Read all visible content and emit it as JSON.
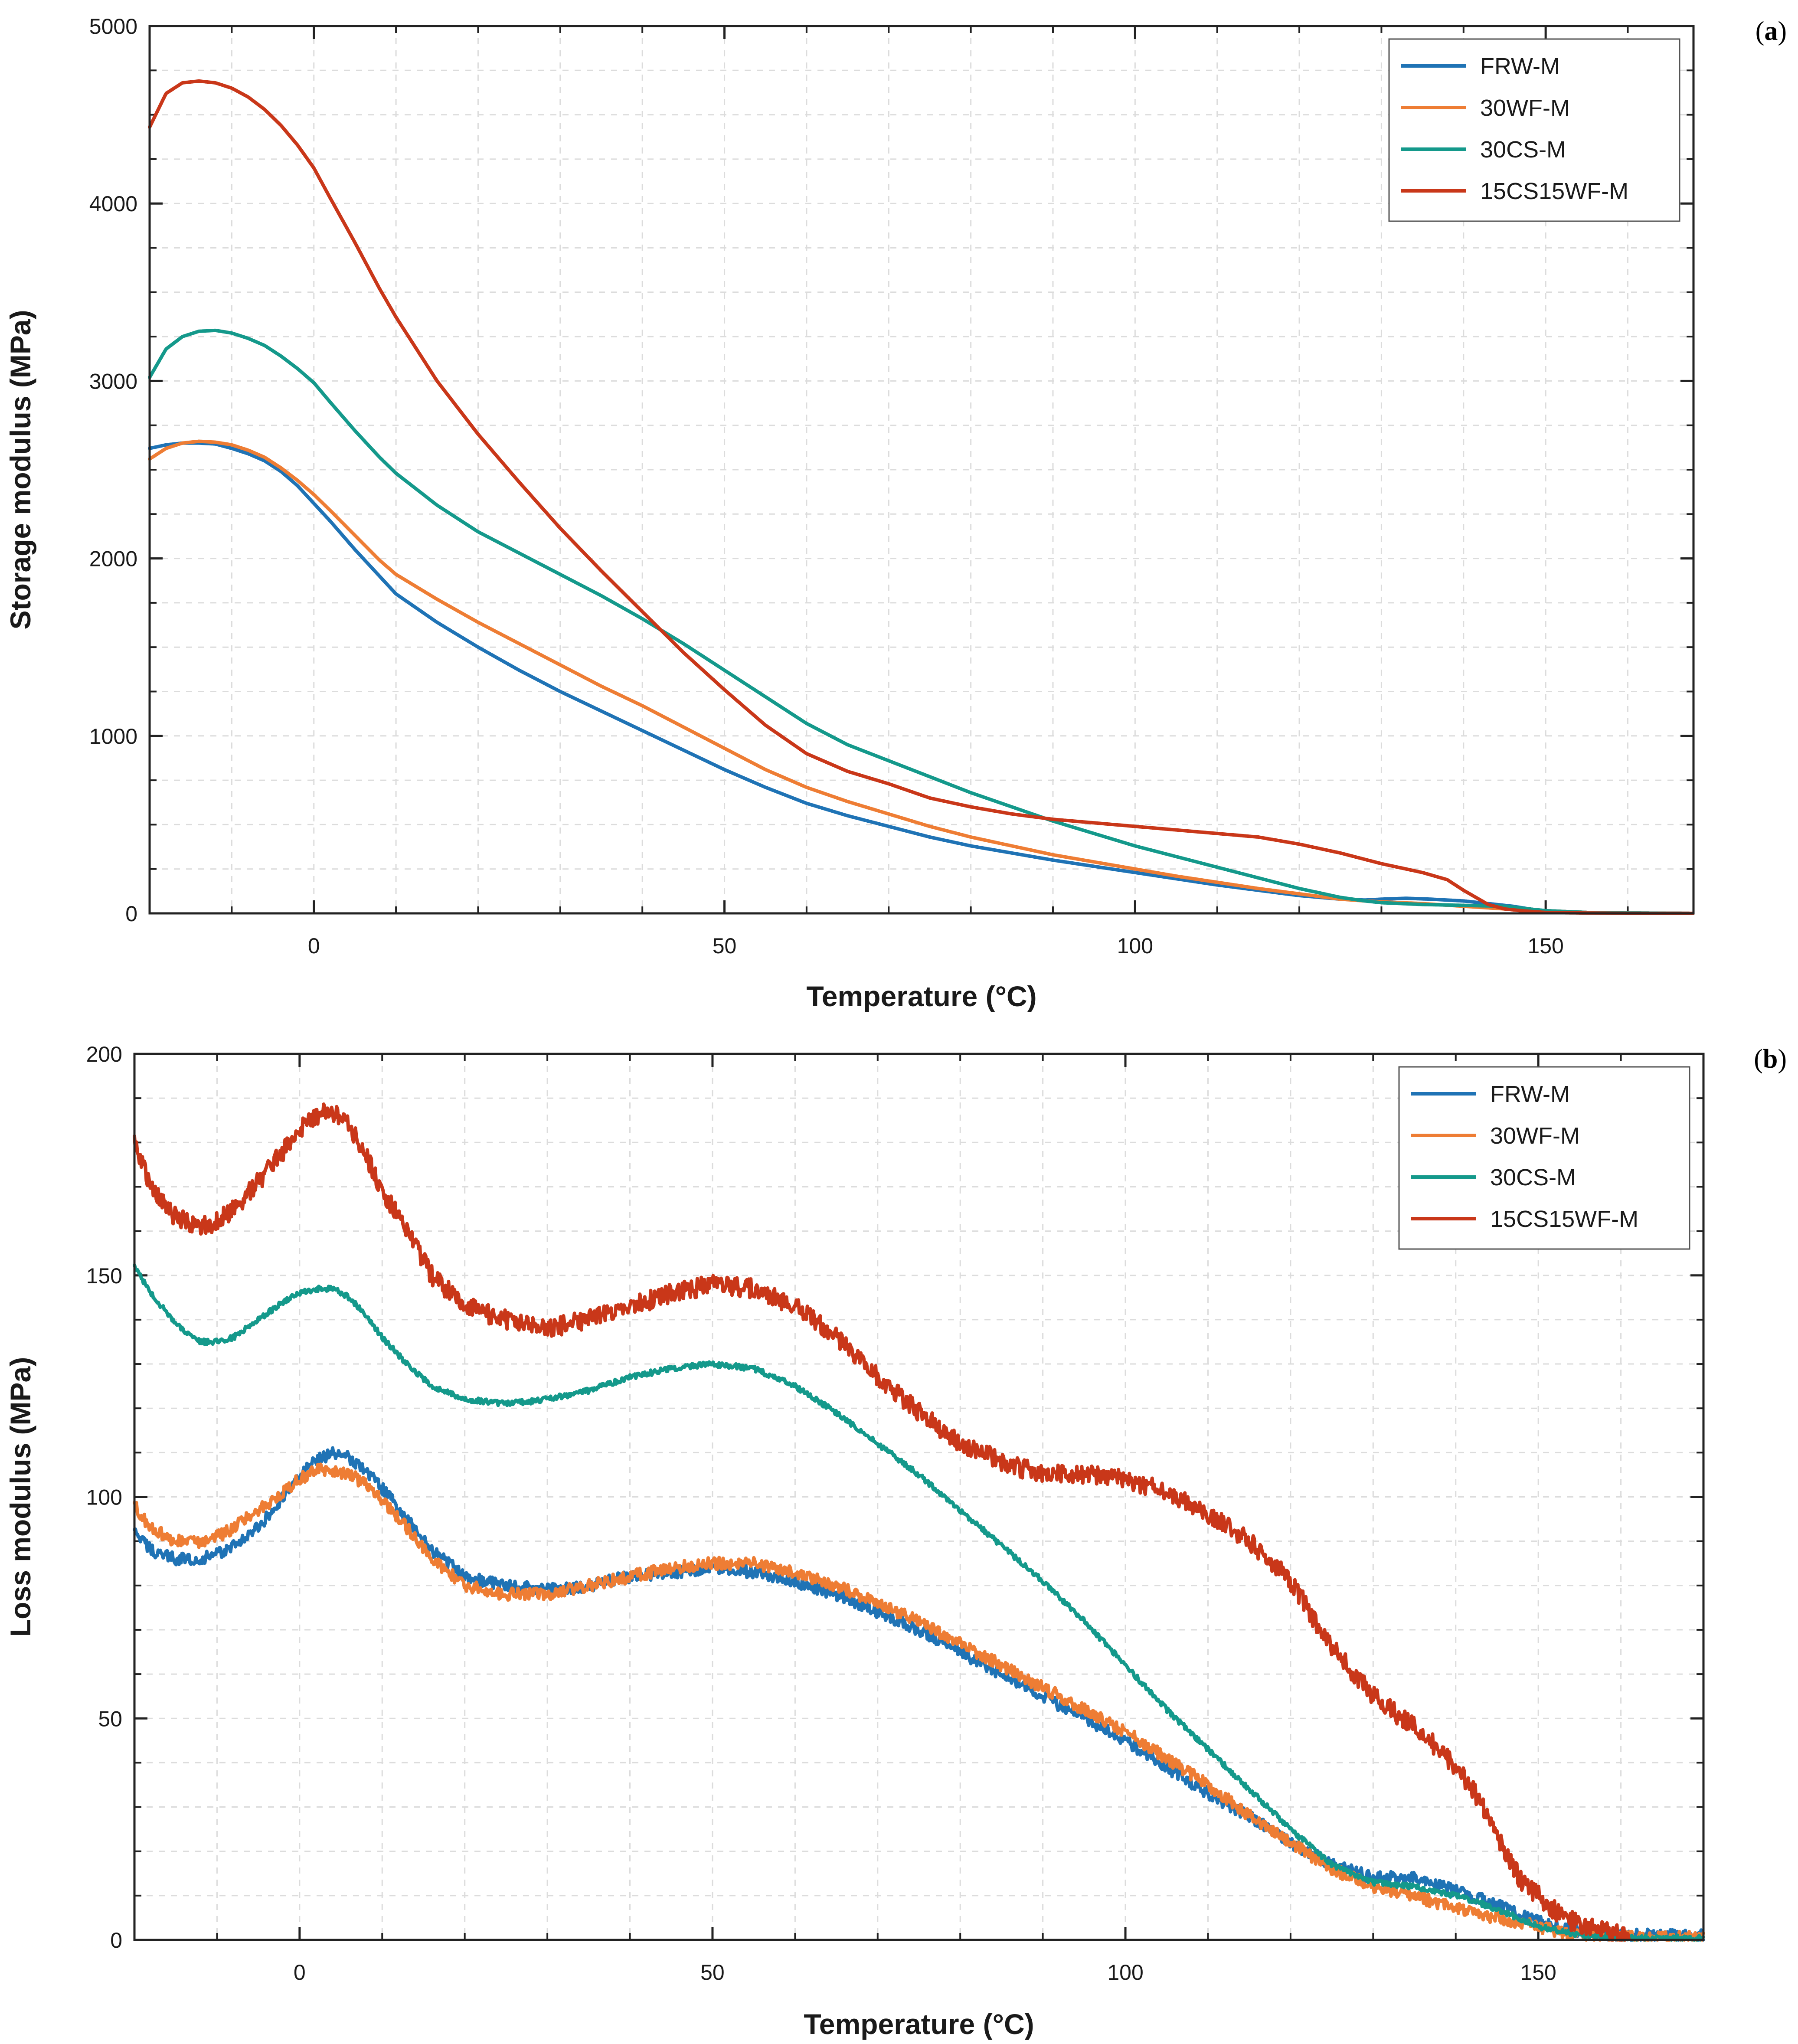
{
  "colors": {
    "FRW-M": "#1f73b5",
    "30WF-M": "#ee7d34",
    "30CS-M": "#14998b",
    "15CS15WF-M": "#c93719",
    "axis": "#222222",
    "grid": "#dcdcdc"
  },
  "chart_data": [
    {
      "id": "a",
      "type": "line",
      "panel_label": {
        "open": "(",
        "letter": "a",
        "close": ")"
      },
      "xlabel": "Temperature (°C)",
      "ylabel": "Storage modulus (MPa)",
      "xlim": [
        -20,
        168
      ],
      "ylim": [
        0,
        5000
      ],
      "xticks": [
        0,
        50,
        100,
        150
      ],
      "yticks": [
        0,
        1000,
        2000,
        3000,
        4000,
        5000
      ],
      "grid": true,
      "legend": "top-right",
      "series": [
        {
          "name": "FRW-M",
          "noise": 0,
          "x": [
            -20,
            -18,
            -16,
            -14,
            -12,
            -10,
            -8,
            -6,
            -4,
            -2,
            0,
            2,
            5,
            8,
            10,
            15,
            20,
            25,
            30,
            35,
            40,
            45,
            50,
            55,
            60,
            65,
            70,
            75,
            80,
            85,
            90,
            95,
            100,
            105,
            110,
            115,
            120,
            125,
            128,
            130,
            133,
            136,
            140,
            143,
            146,
            148,
            150,
            155,
            160,
            168
          ],
          "y": [
            2620,
            2640,
            2650,
            2650,
            2645,
            2620,
            2590,
            2550,
            2490,
            2410,
            2310,
            2210,
            2050,
            1900,
            1800,
            1640,
            1500,
            1370,
            1250,
            1140,
            1030,
            920,
            810,
            710,
            620,
            550,
            490,
            430,
            380,
            340,
            300,
            265,
            230,
            195,
            160,
            130,
            100,
            80,
            75,
            80,
            85,
            80,
            70,
            55,
            40,
            25,
            15,
            5,
            2,
            0
          ]
        },
        {
          "name": "30WF-M",
          "noise": 0,
          "x": [
            -20,
            -18,
            -16,
            -14,
            -12,
            -10,
            -8,
            -6,
            -4,
            -2,
            0,
            2,
            5,
            8,
            10,
            15,
            20,
            25,
            30,
            35,
            40,
            45,
            50,
            55,
            60,
            65,
            70,
            75,
            80,
            85,
            90,
            95,
            100,
            105,
            110,
            115,
            120,
            125,
            128,
            130,
            135,
            140,
            145,
            150,
            155,
            160,
            168
          ],
          "y": [
            2560,
            2620,
            2650,
            2660,
            2655,
            2640,
            2610,
            2570,
            2510,
            2440,
            2360,
            2270,
            2130,
            1990,
            1910,
            1770,
            1640,
            1520,
            1400,
            1280,
            1170,
            1050,
            930,
            810,
            710,
            630,
            560,
            490,
            430,
            380,
            330,
            290,
            250,
            210,
            175,
            140,
            110,
            80,
            70,
            65,
            55,
            40,
            25,
            15,
            5,
            2,
            0
          ]
        },
        {
          "name": "30CS-M",
          "noise": 0,
          "x": [
            -20,
            -18,
            -16,
            -14,
            -12,
            -10,
            -8,
            -6,
            -4,
            -2,
            0,
            2,
            5,
            8,
            10,
            15,
            20,
            25,
            30,
            35,
            40,
            45,
            50,
            55,
            60,
            65,
            70,
            75,
            80,
            85,
            90,
            95,
            100,
            105,
            110,
            115,
            120,
            125,
            128,
            130,
            135,
            140,
            145,
            147,
            150,
            155,
            160,
            168
          ],
          "y": [
            3020,
            3180,
            3250,
            3280,
            3285,
            3270,
            3240,
            3200,
            3140,
            3070,
            2990,
            2880,
            2720,
            2570,
            2480,
            2300,
            2150,
            2030,
            1910,
            1790,
            1660,
            1520,
            1370,
            1220,
            1070,
            950,
            860,
            770,
            680,
            600,
            520,
            450,
            380,
            320,
            260,
            200,
            140,
            90,
            70,
            60,
            50,
            45,
            40,
            30,
            15,
            5,
            2,
            0
          ]
        },
        {
          "name": "15CS15WF-M",
          "noise": 0,
          "x": [
            -20,
            -18,
            -16,
            -14,
            -12,
            -10,
            -8,
            -6,
            -4,
            -2,
            0,
            2,
            5,
            8,
            10,
            15,
            20,
            25,
            30,
            35,
            40,
            45,
            50,
            55,
            60,
            65,
            70,
            75,
            80,
            85,
            90,
            95,
            100,
            105,
            110,
            115,
            120,
            125,
            130,
            135,
            138,
            140,
            143,
            145,
            147,
            150,
            155,
            160,
            168
          ],
          "y": [
            4430,
            4620,
            4680,
            4690,
            4680,
            4650,
            4600,
            4530,
            4440,
            4330,
            4200,
            4030,
            3780,
            3520,
            3360,
            3000,
            2700,
            2430,
            2170,
            1930,
            1700,
            1470,
            1260,
            1060,
            900,
            800,
            730,
            650,
            600,
            560,
            530,
            510,
            490,
            470,
            450,
            430,
            390,
            340,
            280,
            230,
            190,
            130,
            50,
            25,
            15,
            5,
            2,
            0,
            0
          ]
        }
      ]
    },
    {
      "id": "b",
      "type": "line",
      "panel_label": {
        "open": "(",
        "letter": "b",
        "close": ")"
      },
      "xlabel": "Temperature (°C)",
      "ylabel": "Loss modulus (MPa)",
      "xlim": [
        -20,
        170
      ],
      "ylim": [
        0,
        200
      ],
      "xticks": [
        0,
        50,
        100,
        150
      ],
      "yticks": [
        0,
        50,
        100,
        150,
        200
      ],
      "grid": true,
      "legend": "top-right",
      "series": [
        {
          "name": "FRW-M",
          "noise": 1.4,
          "x": [
            -20,
            -18,
            -15,
            -12,
            -10,
            -8,
            -5,
            -2,
            0,
            2,
            4,
            6,
            8,
            10,
            13,
            16,
            20,
            25,
            30,
            35,
            40,
            45,
            50,
            55,
            60,
            65,
            70,
            75,
            80,
            85,
            90,
            95,
            100,
            105,
            110,
            115,
            120,
            125,
            130,
            135,
            140,
            145,
            150,
            155,
            160,
            165,
            170
          ],
          "y": [
            92,
            88,
            86,
            86,
            87,
            89,
            93,
            100,
            105,
            108,
            110,
            109,
            106,
            102,
            95,
            88,
            82,
            80,
            79,
            80,
            82,
            83,
            84,
            83,
            81,
            78,
            74,
            70,
            65,
            60,
            55,
            50,
            45,
            39,
            33,
            28,
            22,
            17,
            14,
            14,
            11,
            8,
            4,
            2,
            1,
            1,
            1
          ]
        },
        {
          "name": "30WF-M",
          "noise": 1.4,
          "x": [
            -20,
            -18,
            -15,
            -12,
            -10,
            -8,
            -5,
            -2,
            0,
            2,
            4,
            6,
            8,
            10,
            13,
            16,
            20,
            25,
            30,
            35,
            40,
            45,
            50,
            55,
            60,
            65,
            70,
            75,
            80,
            85,
            90,
            95,
            100,
            105,
            110,
            115,
            120,
            125,
            130,
            135,
            140,
            145,
            150,
            155,
            160,
            165,
            170
          ],
          "y": [
            98,
            93,
            90,
            90,
            91,
            93,
            97,
            101,
            104,
            106,
            106,
            105,
            103,
            99,
            93,
            86,
            80,
            78,
            78,
            80,
            82,
            84,
            85,
            85,
            83,
            80,
            76,
            72,
            67,
            62,
            57,
            52,
            47,
            41,
            35,
            28,
            22,
            16,
            12,
            10,
            7,
            5,
            3,
            1,
            0.5,
            0.5,
            0.5
          ]
        },
        {
          "name": "30CS-M",
          "noise": 0.6,
          "x": [
            -20,
            -18,
            -15,
            -12,
            -10,
            -8,
            -5,
            -2,
            0,
            2,
            4,
            6,
            8,
            10,
            13,
            16,
            20,
            25,
            30,
            35,
            40,
            45,
            50,
            55,
            60,
            65,
            70,
            75,
            80,
            85,
            90,
            95,
            100,
            105,
            110,
            115,
            120,
            125,
            130,
            135,
            140,
            145,
            150,
            155,
            160,
            165,
            170
          ],
          "y": [
            152,
            146,
            139,
            135,
            135,
            136,
            140,
            144,
            146,
            147,
            147,
            145,
            141,
            136,
            130,
            125,
            122,
            121,
            122,
            124,
            127,
            129,
            130,
            129,
            125,
            119,
            112,
            105,
            97,
            89,
            81,
            72,
            62,
            52,
            43,
            34,
            25,
            17,
            13,
            12,
            10,
            7,
            3,
            1,
            0.5,
            0.5,
            0.5
          ]
        },
        {
          "name": "15CS15WF-M",
          "noise": 2.2,
          "x": [
            -20,
            -18,
            -15,
            -12,
            -10,
            -8,
            -5,
            -2,
            0,
            2,
            4,
            6,
            8,
            10,
            13,
            16,
            20,
            25,
            30,
            35,
            40,
            45,
            50,
            55,
            60,
            65,
            70,
            75,
            80,
            85,
            90,
            95,
            100,
            105,
            110,
            115,
            120,
            125,
            130,
            135,
            138,
            140,
            142,
            144,
            146,
            148,
            150,
            153,
            156,
            160,
            161
          ],
          "y": [
            180,
            170,
            163,
            161,
            162,
            165,
            171,
            178,
            183,
            186,
            187,
            184,
            177,
            169,
            160,
            150,
            143,
            140,
            138,
            140,
            143,
            146,
            148,
            147,
            143,
            136,
            127,
            119,
            112,
            108,
            105,
            105,
            104,
            101,
            96,
            90,
            81,
            66,
            55,
            48,
            43,
            39,
            34,
            28,
            20,
            13,
            10,
            5,
            3,
            1,
            1
          ]
        }
      ]
    }
  ]
}
